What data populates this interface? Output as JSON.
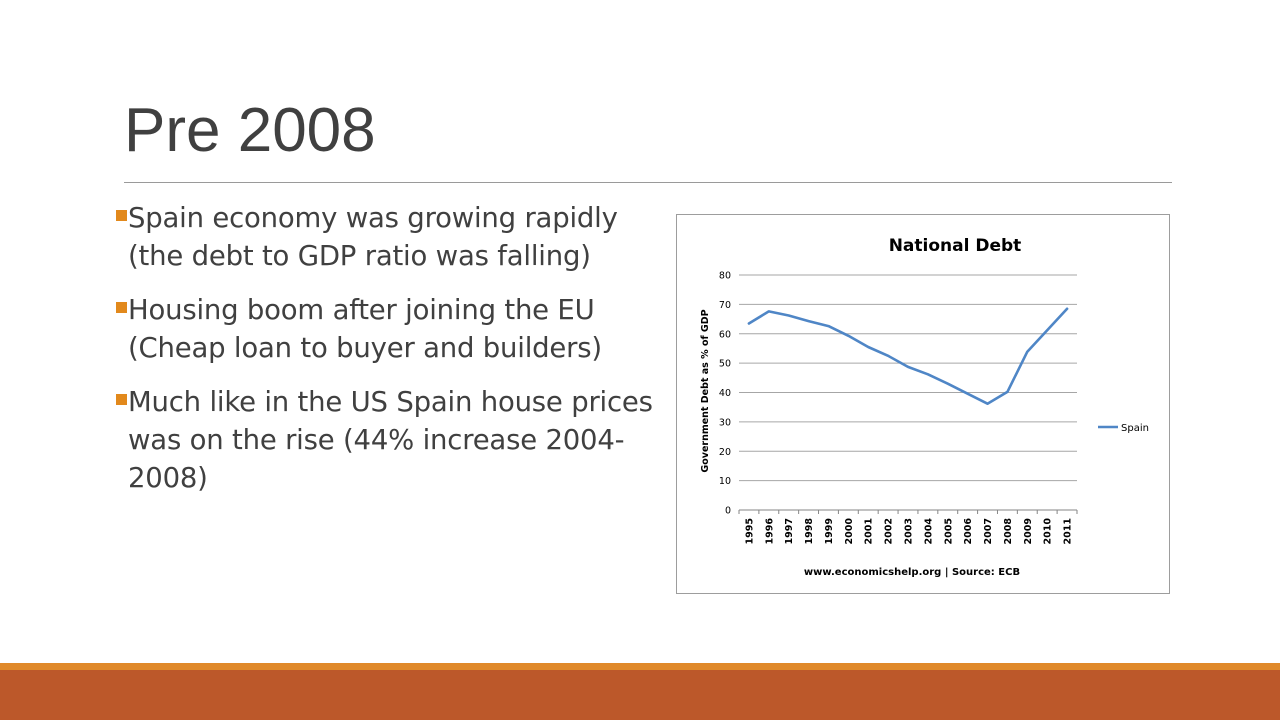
{
  "slide": {
    "title": "Pre 2008",
    "bullets": [
      "Spain economy was growing rapidly (the debt to GDP ratio was falling)",
      "Housing boom after joining the EU (Cheap loan to buyer and builders)",
      "Much like in the US Spain house prices was on the rise (44% increase 2004-2008)"
    ],
    "colors": {
      "accent": "#e2891c",
      "footer": "#bc582a",
      "text": "#404040"
    }
  },
  "chart_data": {
    "type": "line",
    "title": "National Debt",
    "ylabel": "Government Debt as % of GDP",
    "xlabel": "www.economicshelp.org | Source: ECB",
    "categories": [
      "1995",
      "1996",
      "1997",
      "1998",
      "1999",
      "2000",
      "2001",
      "2002",
      "2003",
      "2004",
      "2005",
      "2006",
      "2007",
      "2008",
      "2009",
      "2010",
      "2011"
    ],
    "series": [
      {
        "name": "Spain",
        "color": "#4f86c6",
        "values": [
          63.5,
          67.6,
          66.2,
          64.3,
          62.6,
          59.3,
          55.5,
          52.5,
          48.7,
          46.2,
          43.0,
          39.6,
          36.2,
          40.2,
          53.9,
          61.2,
          68.5
        ]
      }
    ],
    "ylim": [
      0,
      80
    ],
    "yticks": [
      0,
      10,
      20,
      30,
      40,
      50,
      60,
      70,
      80
    ],
    "grid": true,
    "legend": "right"
  }
}
